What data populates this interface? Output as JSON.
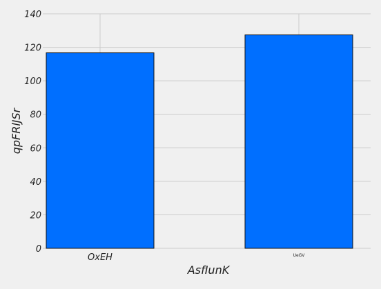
{
  "chart_data": {
    "type": "bar",
    "categories": [
      "OxEH",
      "UeGV"
    ],
    "values": [
      116.7,
      127.4
    ],
    "xlabel": "AsfIunK",
    "ylabel": "qpFRlJSr",
    "ylim": [
      0,
      140
    ],
    "yticks": [
      "0",
      "20",
      "40",
      "60",
      "80",
      "100",
      "120",
      "140"
    ],
    "grid": true,
    "legend": "none",
    "colors": {
      "background": "#f0f0f0",
      "bar": "#006fff",
      "bar_edge": "#111111",
      "grid": "#cbcbcb"
    }
  }
}
